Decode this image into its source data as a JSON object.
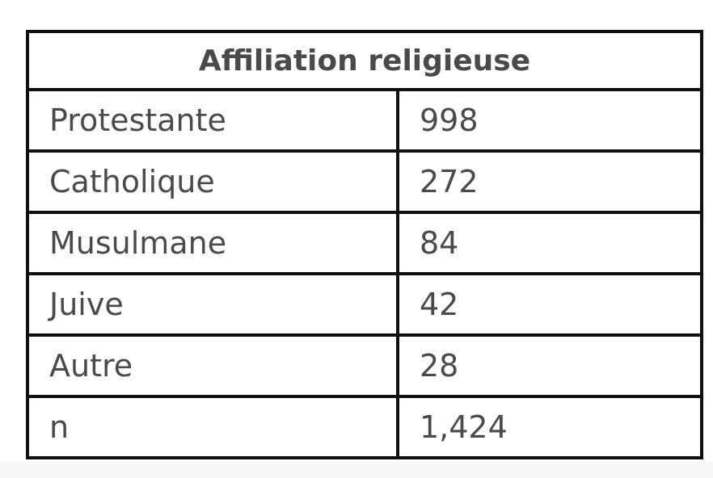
{
  "table": {
    "header": "Affiliation religieuse",
    "rows": [
      {
        "label": "Protestante",
        "value": "998"
      },
      {
        "label": "Catholique",
        "value": "272"
      },
      {
        "label": "Musulmane",
        "value": "84"
      },
      {
        "label": "Juive",
        "value": "42"
      },
      {
        "label": "Autre",
        "value": "28"
      },
      {
        "label": "n",
        "value": "1,424"
      }
    ]
  }
}
